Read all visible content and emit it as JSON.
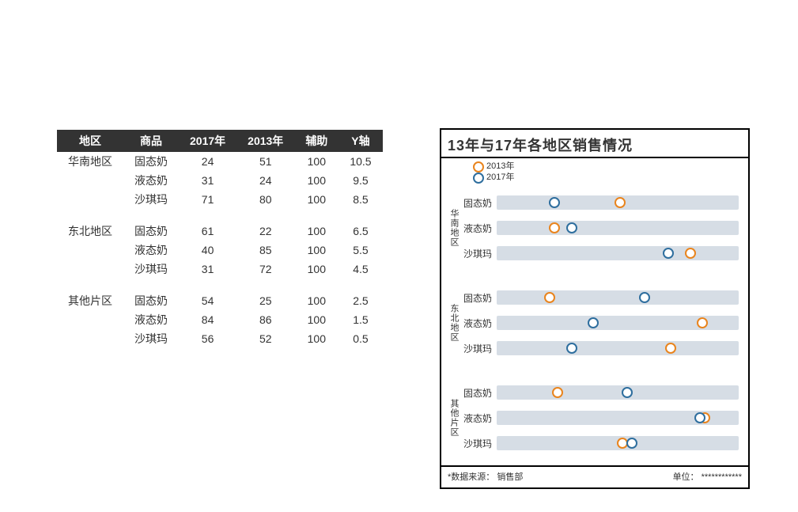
{
  "table": {
    "headers": [
      "地区",
      "商品",
      "2017年",
      "2013年",
      "辅助",
      "Y轴"
    ],
    "rows": [
      {
        "region": "华南地区",
        "product": "固态奶",
        "y2017": 24,
        "y2013": 51,
        "aux": 100,
        "yaxis": 10.5,
        "first_of_group": true
      },
      {
        "region": "",
        "product": "液态奶",
        "y2017": 31,
        "y2013": 24,
        "aux": 100,
        "yaxis": 9.5
      },
      {
        "region": "",
        "product": "沙琪玛",
        "y2017": 71,
        "y2013": 80,
        "aux": 100,
        "yaxis": 8.5
      },
      {
        "region": "东北地区",
        "product": "固态奶",
        "y2017": 61,
        "y2013": 22,
        "aux": 100,
        "yaxis": 6.5,
        "first_of_group": true,
        "gap_before": true
      },
      {
        "region": "",
        "product": "液态奶",
        "y2017": 40,
        "y2013": 85,
        "aux": 100,
        "yaxis": 5.5
      },
      {
        "region": "",
        "product": "沙琪玛",
        "y2017": 31,
        "y2013": 72,
        "aux": 100,
        "yaxis": 4.5
      },
      {
        "region": "其他片区",
        "product": "固态奶",
        "y2017": 54,
        "y2013": 25,
        "aux": 100,
        "yaxis": 2.5,
        "first_of_group": true,
        "gap_before": true
      },
      {
        "region": "",
        "product": "液态奶",
        "y2017": 84,
        "y2013": 86,
        "aux": 100,
        "yaxis": 1.5
      },
      {
        "region": "",
        "product": "沙琪玛",
        "y2017": 56,
        "y2013": 52,
        "aux": 100,
        "yaxis": 0.5
      }
    ]
  },
  "chart": {
    "type": "dot-strip",
    "title": "13年与17年各地区销售情况",
    "legend": [
      {
        "label": "2013年",
        "color": "#e9841d"
      },
      {
        "label": "2017年",
        "color": "#2e6e9e"
      }
    ],
    "x_domain": [
      0,
      100
    ],
    "track_color": "#d6dde5",
    "marker_fill": "#ffffff",
    "marker_stroke_width": 2.5,
    "marker_diameter": 14,
    "track_height": 18,
    "row_spacing": 32,
    "group_gap": 24,
    "groups": [
      {
        "region": "华南地区",
        "rows": [
          {
            "product": "固态奶",
            "y2017": 24,
            "y2013": 51
          },
          {
            "product": "液态奶",
            "y2017": 31,
            "y2013": 24
          },
          {
            "product": "沙琪玛",
            "y2017": 71,
            "y2013": 80
          }
        ]
      },
      {
        "region": "东北地区",
        "rows": [
          {
            "product": "固态奶",
            "y2017": 61,
            "y2013": 22
          },
          {
            "product": "液态奶",
            "y2017": 40,
            "y2013": 85
          },
          {
            "product": "沙琪玛",
            "y2017": 31,
            "y2013": 72
          }
        ]
      },
      {
        "region": "其他片区",
        "rows": [
          {
            "product": "固态奶",
            "y2017": 54,
            "y2013": 25
          },
          {
            "product": "液态奶",
            "y2017": 84,
            "y2013": 86
          },
          {
            "product": "沙琪玛",
            "y2017": 56,
            "y2013": 52
          }
        ]
      }
    ],
    "footer": {
      "source_label": "*数据来源：",
      "source_value": "销售部",
      "unit_label": "单位：",
      "unit_value": "************"
    },
    "colors": {
      "frame_border": "#000000",
      "title_text": "#000000",
      "track": "#d6dde5",
      "s2013": "#e9841d",
      "s2017": "#2e6e9e",
      "background": "#ffffff"
    },
    "fonts": {
      "title_size_pt": 16,
      "legend_size_pt": 9,
      "label_size_pt": 10,
      "footer_size_pt": 9
    }
  }
}
